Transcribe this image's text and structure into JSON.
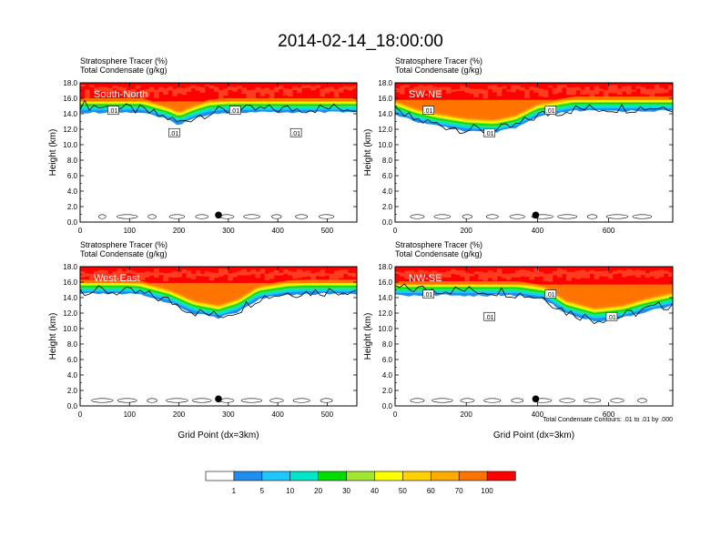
{
  "title": "2014-02-14_18:00:00",
  "footnote": "Total Condensate Contours: .01 to .01 by .000",
  "colors": [
    "#ffffff",
    "#1e8ef0",
    "#1ec8ff",
    "#00e6c8",
    "#32e664",
    "#00dc00",
    "#a0e632",
    "#ffff00",
    "#ffd200",
    "#ffaa00",
    "#ff7300",
    "#ff3c1e",
    "#ff0000"
  ],
  "chart_data": [
    {
      "type": "contour",
      "panel": "South-North",
      "subtitle1": "Stratosphere Tracer   (%)",
      "subtitle2": "Total Condensate   (g/kg)",
      "ylabel": "Height (km)",
      "xlabel": "",
      "xlim": [
        0,
        560
      ],
      "ylim": [
        0,
        18
      ],
      "xticks": [
        0,
        100,
        200,
        300,
        400,
        500
      ],
      "yticks": [
        "0.0",
        "2.0",
        "4.0",
        "6.0",
        "8.0",
        "10.0",
        "12.0",
        "14.0",
        "16.0",
        "18.0"
      ],
      "contour_labels": [
        ".01",
        ".01",
        ".01",
        ".01"
      ],
      "marker_x": 280,
      "tropopause_km": 15.6,
      "cloud": [
        [
          0,
          15.2
        ],
        [
          60,
          14.8
        ],
        [
          120,
          14.5
        ],
        [
          180,
          13.4
        ],
        [
          200,
          12.8
        ],
        [
          230,
          13.6
        ],
        [
          260,
          14.2
        ],
        [
          300,
          14.4
        ],
        [
          400,
          14.6
        ],
        [
          560,
          14.8
        ]
      ]
    },
    {
      "type": "contour",
      "panel": "SW-NE",
      "subtitle1": "Stratosphere Tracer   (%)",
      "subtitle2": "Total Condensate   (g/kg)",
      "ylabel": "Height (km)",
      "xlabel": "",
      "xlim": [
        0,
        780
      ],
      "ylim": [
        0,
        18
      ],
      "xticks": [
        0,
        200,
        400,
        600
      ],
      "yticks": [
        "0.0",
        "2.0",
        "4.0",
        "6.0",
        "8.0",
        "10.0",
        "12.0",
        "14.0",
        "16.0",
        "18.0"
      ],
      "contour_labels": [
        ".01",
        ".01",
        ".01"
      ],
      "marker_x": 395,
      "tropopause_km": 15.8,
      "cloud": [
        [
          0,
          14.2
        ],
        [
          60,
          13.2
        ],
        [
          120,
          12.6
        ],
        [
          200,
          12.0
        ],
        [
          280,
          11.8
        ],
        [
          340,
          12.4
        ],
        [
          400,
          13.8
        ],
        [
          500,
          14.6
        ],
        [
          780,
          14.9
        ]
      ]
    },
    {
      "type": "contour",
      "panel": "West-East",
      "subtitle1": "Stratosphere Tracer   (%)",
      "subtitle2": "Total Condensate   (g/kg)",
      "ylabel": "Height (km)",
      "xlabel": "Grid Point (dx=3km)",
      "xlim": [
        0,
        560
      ],
      "ylim": [
        0,
        18
      ],
      "xticks": [
        0,
        100,
        200,
        300,
        400,
        500
      ],
      "yticks": [
        "0.0",
        "2.0",
        "4.0",
        "6.0",
        "8.0",
        "10.0",
        "12.0",
        "14.0",
        "16.0",
        "18.0"
      ],
      "contour_labels": [],
      "marker_x": 280,
      "tropopause_km": 15.9,
      "cloud": [
        [
          0,
          15.0
        ],
        [
          120,
          14.6
        ],
        [
          180,
          13.6
        ],
        [
          230,
          12.2
        ],
        [
          280,
          11.6
        ],
        [
          320,
          12.4
        ],
        [
          360,
          14.0
        ],
        [
          420,
          14.6
        ],
        [
          560,
          15.0
        ]
      ]
    },
    {
      "type": "contour",
      "panel": "NW-SE",
      "subtitle1": "Stratosphere Tracer   (%)",
      "subtitle2": "Total Condensate   (g/kg)",
      "ylabel": "Height (km)",
      "xlabel": "Grid Point (dx=3km)",
      "xlim": [
        0,
        780
      ],
      "ylim": [
        0,
        18
      ],
      "xticks": [
        0,
        200,
        400,
        600
      ],
      "yticks": [
        "0.0",
        "2.0",
        "4.0",
        "6.0",
        "8.0",
        "10.0",
        "12.0",
        "14.0",
        "16.0",
        "18.0"
      ],
      "contour_labels": [
        ".01",
        ".01",
        ".01",
        ".01"
      ],
      "marker_x": 395,
      "tropopause_km": 15.7,
      "cloud": [
        [
          0,
          15.2
        ],
        [
          300,
          14.8
        ],
        [
          420,
          14.0
        ],
        [
          480,
          12.2
        ],
        [
          560,
          11.2
        ],
        [
          640,
          11.6
        ],
        [
          700,
          12.4
        ],
        [
          780,
          13.2
        ]
      ]
    }
  ],
  "colorbar": {
    "labels": [
      "1",
      "5",
      "10",
      "20",
      "30",
      "40",
      "50",
      "60",
      "70",
      "100"
    ]
  }
}
